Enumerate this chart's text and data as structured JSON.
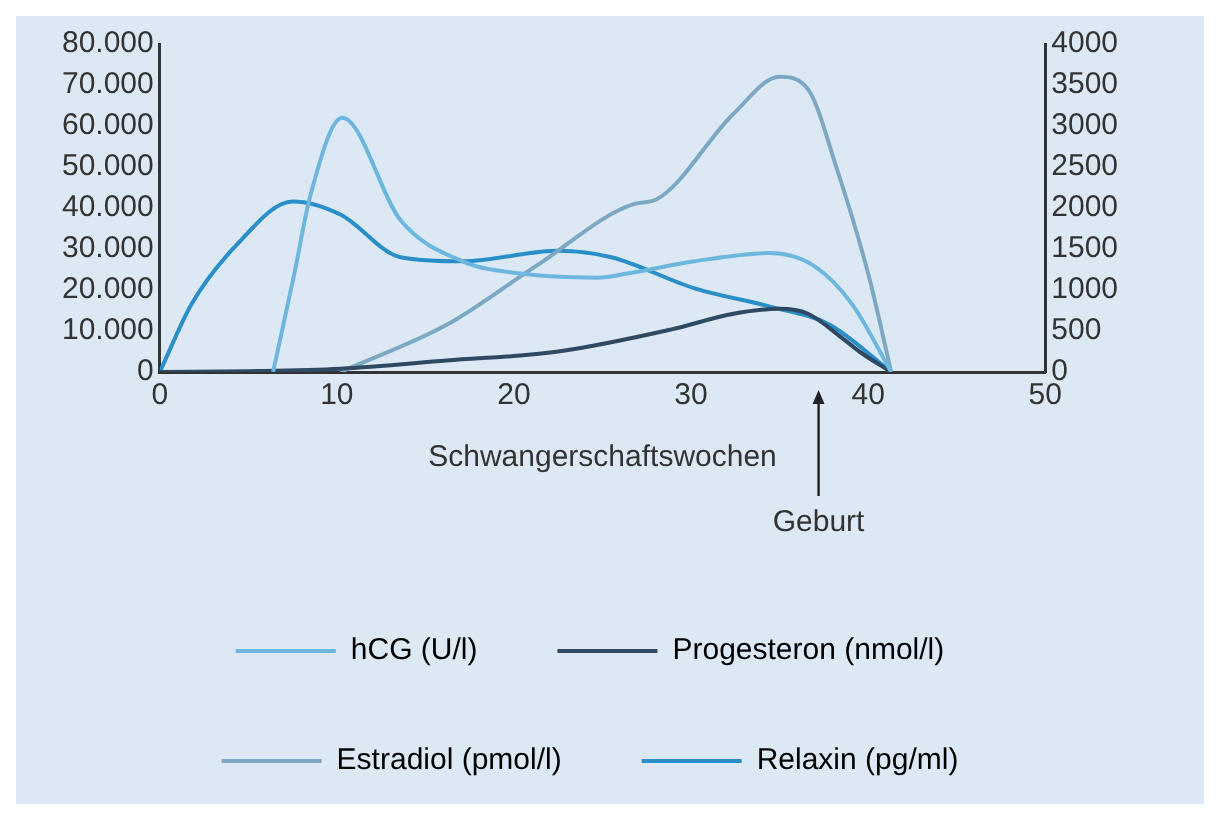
{
  "chart_data": {
    "type": "line",
    "xlabel": "Schwangerschaftswochen",
    "xlim": [
      0,
      50
    ],
    "xticks": [
      0,
      10,
      20,
      30,
      40,
      50
    ],
    "ylim": [
      0,
      80000
    ],
    "yticks": [
      {
        "value": 0,
        "label": "0"
      },
      {
        "value": 10000,
        "label": "10.000"
      },
      {
        "value": 20000,
        "label": "20.000"
      },
      {
        "value": 30000,
        "label": "30.000"
      },
      {
        "value": 40000,
        "label": "40.000"
      },
      {
        "value": 50000,
        "label": "50.000"
      },
      {
        "value": 60000,
        "label": "60.000"
      },
      {
        "value": 70000,
        "label": "70.000"
      },
      {
        "value": 80000,
        "label": "80.000"
      }
    ],
    "y2lim": [
      0,
      4000
    ],
    "y2ticks": [
      0,
      500,
      1000,
      1500,
      2000,
      2500,
      3000,
      3500,
      4000
    ],
    "grid": false,
    "legend": "bottom",
    "marker": "none",
    "line_style": "solid",
    "annotations": [
      "Geburt"
    ],
    "series": [
      {
        "name": "hCG (U/l)",
        "color": "#6db6de",
        "x": [
          6.4,
          7.6,
          8.5,
          10.3,
          13.6,
          17.1,
          20.4,
          24.7,
          26.4,
          30.2,
          34.4,
          36.9,
          39.1,
          41.3
        ],
        "values": [
          0,
          24000,
          43000,
          62000,
          37000,
          27000,
          24000,
          23000,
          24000,
          27000,
          29000,
          26000,
          16500,
          0
        ]
      },
      {
        "name": "Progesteron (nmol/l)",
        "color": "#2e4a62",
        "axis": "y2",
        "x": [
          0,
          5,
          10.2,
          16.2,
          22.5,
          28.9,
          32.4,
          35,
          36.6,
          38.5,
          39.5,
          41.3
        ],
        "values": [
          0,
          10,
          40,
          140,
          250,
          520,
          710,
          770,
          710,
          420,
          250,
          0
        ]
      },
      {
        "name": "Estradiol (pmol/l)",
        "color": "#7ca8c4",
        "x": [
          10.2,
          16.2,
          21.3,
          26.8,
          28,
          32.4,
          35,
          36.6,
          38.2,
          40,
          41.3
        ],
        "values": [
          0,
          11500,
          26000,
          41000,
          42000,
          63000,
          72000,
          69000,
          50000,
          24000,
          0
        ]
      },
      {
        "name": "Relaxin (pg/ml)",
        "color": "#2a8fc8",
        "axis": "y2",
        "x": [
          0,
          1.8,
          4.3,
          7.5,
          10.2,
          13.6,
          17.1,
          22.5,
          25.5,
          30.2,
          34.4,
          37.8,
          41.3
        ],
        "values": [
          0,
          830,
          1540,
          2080,
          1920,
          1400,
          1350,
          1480,
          1400,
          1020,
          800,
          580,
          0
        ]
      }
    ]
  }
}
